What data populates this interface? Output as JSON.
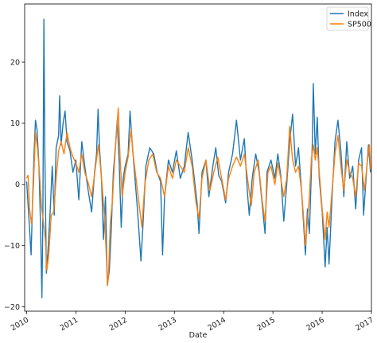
{
  "chart_data": {
    "type": "line",
    "xlabel": "Date",
    "ylabel": "",
    "title": "",
    "xlim": [
      2009.96,
      2017.0
    ],
    "ylim": [
      -20.7,
      29.5
    ],
    "xticks": [
      2010,
      2011,
      2012,
      2013,
      2014,
      2015,
      2016,
      2017
    ],
    "xtick_labels": [
      "2010",
      "2011",
      "2012",
      "2013",
      "2014",
      "2015",
      "2016",
      "2017"
    ],
    "yticks": [
      -20,
      -10,
      0,
      10,
      20
    ],
    "ytick_labels": [
      "−20",
      "−10",
      "0",
      "10",
      "20"
    ],
    "grid": false,
    "legend_position": "top-right",
    "series": [
      {
        "name": "Index",
        "color": "#1f77b4",
        "points": [
          [
            2010.0,
            0.5
          ],
          [
            2010.05,
            -6.0
          ],
          [
            2010.09,
            -11.5
          ],
          [
            2010.12,
            -3.0
          ],
          [
            2010.15,
            5.0
          ],
          [
            2010.18,
            10.5
          ],
          [
            2010.21,
            9.0
          ],
          [
            2010.25,
            3.0
          ],
          [
            2010.28,
            -6.0
          ],
          [
            2010.31,
            -18.5
          ],
          [
            2010.33,
            -5.0
          ],
          [
            2010.35,
            27.0
          ],
          [
            2010.37,
            5.0
          ],
          [
            2010.4,
            -14.5
          ],
          [
            2010.44,
            -10.0
          ],
          [
            2010.48,
            -4.0
          ],
          [
            2010.52,
            3.0
          ],
          [
            2010.56,
            -5.0
          ],
          [
            2010.6,
            6.0
          ],
          [
            2010.65,
            8.0
          ],
          [
            2010.67,
            14.5
          ],
          [
            2010.7,
            6.5
          ],
          [
            2010.74,
            10.0
          ],
          [
            2010.78,
            12.0
          ],
          [
            2010.82,
            7.0
          ],
          [
            2010.88,
            5.5
          ],
          [
            2010.94,
            2.0
          ],
          [
            2011.0,
            4.0
          ],
          [
            2011.06,
            -2.5
          ],
          [
            2011.12,
            7.0
          ],
          [
            2011.18,
            3.0
          ],
          [
            2011.25,
            -1.0
          ],
          [
            2011.32,
            -4.5
          ],
          [
            2011.38,
            2.0
          ],
          [
            2011.42,
            5.0
          ],
          [
            2011.45,
            12.3
          ],
          [
            2011.48,
            6.0
          ],
          [
            2011.52,
            1.0
          ],
          [
            2011.56,
            -9.0
          ],
          [
            2011.6,
            -2.0
          ],
          [
            2011.64,
            -16.5
          ],
          [
            2011.68,
            -14.0
          ],
          [
            2011.72,
            -7.0
          ],
          [
            2011.76,
            2.0
          ],
          [
            2011.8,
            6.0
          ],
          [
            2011.84,
            10.5
          ],
          [
            2011.88,
            3.5
          ],
          [
            2011.92,
            -7.0
          ],
          [
            2011.96,
            1.0
          ],
          [
            2012.0,
            3.0
          ],
          [
            2012.06,
            5.0
          ],
          [
            2012.1,
            12.0
          ],
          [
            2012.15,
            6.0
          ],
          [
            2012.2,
            1.0
          ],
          [
            2012.25,
            -4.0
          ],
          [
            2012.32,
            -12.5
          ],
          [
            2012.36,
            -7.0
          ],
          [
            2012.42,
            3.0
          ],
          [
            2012.5,
            6.0
          ],
          [
            2012.58,
            5.0
          ],
          [
            2012.65,
            2.0
          ],
          [
            2012.72,
            0.5
          ],
          [
            2012.76,
            -11.5
          ],
          [
            2012.8,
            -2.0
          ],
          [
            2012.88,
            4.0
          ],
          [
            2012.96,
            2.0
          ],
          [
            2013.04,
            5.5
          ],
          [
            2013.12,
            1.0
          ],
          [
            2013.2,
            3.0
          ],
          [
            2013.28,
            8.5
          ],
          [
            2013.36,
            4.0
          ],
          [
            2013.46,
            -3.0
          ],
          [
            2013.5,
            -8.0
          ],
          [
            2013.56,
            2.0
          ],
          [
            2013.64,
            4.0
          ],
          [
            2013.7,
            -2.0
          ],
          [
            2013.78,
            3.0
          ],
          [
            2013.84,
            6.0
          ],
          [
            2013.9,
            1.5
          ],
          [
            2013.96,
            0.5
          ],
          [
            2014.04,
            -3.0
          ],
          [
            2014.1,
            2.0
          ],
          [
            2014.18,
            5.0
          ],
          [
            2014.26,
            10.5
          ],
          [
            2014.34,
            4.0
          ],
          [
            2014.42,
            7.5
          ],
          [
            2014.48,
            -1.0
          ],
          [
            2014.52,
            -5.0
          ],
          [
            2014.58,
            1.0
          ],
          [
            2014.65,
            5.0
          ],
          [
            2014.72,
            2.0
          ],
          [
            2014.78,
            -3.0
          ],
          [
            2014.84,
            -8.0
          ],
          [
            2014.88,
            2.0
          ],
          [
            2014.96,
            4.0
          ],
          [
            2015.04,
            1.0
          ],
          [
            2015.1,
            5.0
          ],
          [
            2015.16,
            1.5
          ],
          [
            2015.22,
            -6.0
          ],
          [
            2015.28,
            0.0
          ],
          [
            2015.34,
            7.0
          ],
          [
            2015.4,
            11.5
          ],
          [
            2015.46,
            3.0
          ],
          [
            2015.52,
            6.0
          ],
          [
            2015.58,
            -1.0
          ],
          [
            2015.62,
            -6.0
          ],
          [
            2015.66,
            -11.5
          ],
          [
            2015.7,
            -4.0
          ],
          [
            2015.74,
            -8.0
          ],
          [
            2015.8,
            7.0
          ],
          [
            2015.82,
            16.5
          ],
          [
            2015.86,
            5.0
          ],
          [
            2015.9,
            11.0
          ],
          [
            2015.94,
            1.0
          ],
          [
            2016.0,
            -4.5
          ],
          [
            2016.06,
            -13.5
          ],
          [
            2016.1,
            -7.0
          ],
          [
            2016.14,
            -13.0
          ],
          [
            2016.2,
            -2.0
          ],
          [
            2016.26,
            7.0
          ],
          [
            2016.32,
            10.5
          ],
          [
            2016.38,
            5.5
          ],
          [
            2016.44,
            -2.0
          ],
          [
            2016.5,
            7.0
          ],
          [
            2016.56,
            1.0
          ],
          [
            2016.62,
            3.0
          ],
          [
            2016.68,
            -4.0
          ],
          [
            2016.74,
            4.0
          ],
          [
            2016.8,
            6.0
          ],
          [
            2016.84,
            -5.0
          ],
          [
            2016.9,
            2.0
          ],
          [
            2016.94,
            6.5
          ],
          [
            2016.98,
            2.0
          ]
        ]
      },
      {
        "name": "SP500",
        "color": "#ff7f0e",
        "points": [
          [
            2010.0,
            1.0
          ],
          [
            2010.03,
            1.5
          ],
          [
            2010.06,
            -4.0
          ],
          [
            2010.1,
            -6.5
          ],
          [
            2010.14,
            0.0
          ],
          [
            2010.18,
            8.5
          ],
          [
            2010.22,
            6.0
          ],
          [
            2010.26,
            2.0
          ],
          [
            2010.3,
            -3.5
          ],
          [
            2010.34,
            -6.0
          ],
          [
            2010.38,
            -9.0
          ],
          [
            2010.41,
            -14.0
          ],
          [
            2010.45,
            -11.5
          ],
          [
            2010.5,
            -5.0
          ],
          [
            2010.55,
            -4.5
          ],
          [
            2010.6,
            1.0
          ],
          [
            2010.65,
            5.5
          ],
          [
            2010.7,
            7.0
          ],
          [
            2010.76,
            5.0
          ],
          [
            2010.82,
            8.5
          ],
          [
            2010.88,
            6.0
          ],
          [
            2010.94,
            4.5
          ],
          [
            2011.0,
            3.5
          ],
          [
            2011.06,
            2.0
          ],
          [
            2011.12,
            5.0
          ],
          [
            2011.18,
            2.0
          ],
          [
            2011.26,
            0.0
          ],
          [
            2011.32,
            -2.0
          ],
          [
            2011.4,
            3.0
          ],
          [
            2011.46,
            6.5
          ],
          [
            2011.52,
            1.0
          ],
          [
            2011.58,
            -5.0
          ],
          [
            2011.62,
            -12.0
          ],
          [
            2011.64,
            -16.5
          ],
          [
            2011.66,
            -15.0
          ],
          [
            2011.7,
            -6.0
          ],
          [
            2011.74,
            -3.0
          ],
          [
            2011.78,
            3.0
          ],
          [
            2011.82,
            8.0
          ],
          [
            2011.86,
            12.5
          ],
          [
            2011.9,
            4.0
          ],
          [
            2011.94,
            -2.0
          ],
          [
            2012.0,
            2.0
          ],
          [
            2012.06,
            4.5
          ],
          [
            2012.12,
            9.0
          ],
          [
            2012.16,
            5.0
          ],
          [
            2012.22,
            1.0
          ],
          [
            2012.28,
            -3.0
          ],
          [
            2012.34,
            -7.0
          ],
          [
            2012.4,
            0.0
          ],
          [
            2012.48,
            4.0
          ],
          [
            2012.56,
            5.0
          ],
          [
            2012.64,
            2.0
          ],
          [
            2012.72,
            1.0
          ],
          [
            2012.8,
            -2.0
          ],
          [
            2012.88,
            3.0
          ],
          [
            2012.96,
            1.0
          ],
          [
            2013.04,
            4.0
          ],
          [
            2013.12,
            3.0
          ],
          [
            2013.2,
            2.0
          ],
          [
            2013.28,
            6.0
          ],
          [
            2013.36,
            3.0
          ],
          [
            2013.44,
            -3.0
          ],
          [
            2013.5,
            -5.5
          ],
          [
            2013.56,
            1.0
          ],
          [
            2013.64,
            4.0
          ],
          [
            2013.72,
            -1.0
          ],
          [
            2013.8,
            2.0
          ],
          [
            2013.88,
            4.5
          ],
          [
            2013.96,
            1.0
          ],
          [
            2014.04,
            -2.5
          ],
          [
            2014.1,
            1.0
          ],
          [
            2014.18,
            3.0
          ],
          [
            2014.26,
            4.5
          ],
          [
            2014.34,
            3.0
          ],
          [
            2014.42,
            5.0
          ],
          [
            2014.5,
            0.0
          ],
          [
            2014.56,
            -3.5
          ],
          [
            2014.62,
            2.0
          ],
          [
            2014.7,
            4.0
          ],
          [
            2014.78,
            -2.5
          ],
          [
            2014.84,
            -6.0
          ],
          [
            2014.9,
            2.0
          ],
          [
            2014.96,
            3.0
          ],
          [
            2015.04,
            0.0
          ],
          [
            2015.1,
            3.5
          ],
          [
            2015.16,
            1.0
          ],
          [
            2015.22,
            -2.0
          ],
          [
            2015.28,
            1.0
          ],
          [
            2015.34,
            9.5
          ],
          [
            2015.4,
            4.0
          ],
          [
            2015.46,
            2.0
          ],
          [
            2015.52,
            3.0
          ],
          [
            2015.58,
            -1.0
          ],
          [
            2015.62,
            -5.0
          ],
          [
            2015.66,
            -10.0
          ],
          [
            2015.7,
            -6.0
          ],
          [
            2015.74,
            -2.0
          ],
          [
            2015.78,
            4.0
          ],
          [
            2015.82,
            6.5
          ],
          [
            2015.86,
            4.0
          ],
          [
            2015.9,
            6.0
          ],
          [
            2015.94,
            2.0
          ],
          [
            2016.0,
            -4.0
          ],
          [
            2016.06,
            -9.0
          ],
          [
            2016.1,
            -4.5
          ],
          [
            2016.14,
            -7.0
          ],
          [
            2016.2,
            -1.0
          ],
          [
            2016.26,
            5.0
          ],
          [
            2016.32,
            8.0
          ],
          [
            2016.38,
            3.0
          ],
          [
            2016.44,
            -1.0
          ],
          [
            2016.5,
            4.0
          ],
          [
            2016.56,
            2.0
          ],
          [
            2016.62,
            1.0
          ],
          [
            2016.68,
            -2.0
          ],
          [
            2016.74,
            3.5
          ],
          [
            2016.8,
            3.0
          ],
          [
            2016.86,
            -1.0
          ],
          [
            2016.92,
            4.0
          ],
          [
            2016.96,
            6.5
          ],
          [
            2016.98,
            2.5
          ]
        ]
      }
    ]
  }
}
